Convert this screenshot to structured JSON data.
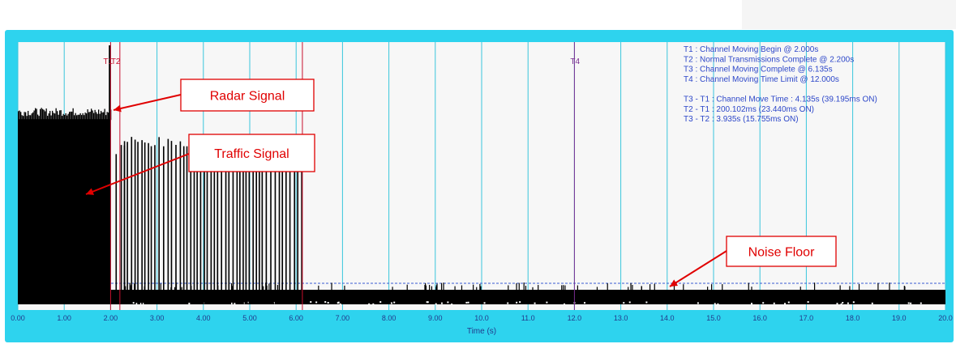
{
  "chart_data": {
    "type": "line",
    "title": "",
    "xlabel": "Time (s)",
    "ylabel": "",
    "xlim": [
      0,
      20
    ],
    "x_ticks": [
      "0.00",
      "1.00",
      "2.00",
      "3.00",
      "4.00",
      "5.00",
      "6.00",
      "7.00",
      "8.00",
      "9.00",
      "10.0",
      "11.0",
      "12.0",
      "13.0",
      "14.0",
      "15.0",
      "16.0",
      "17.0",
      "18.0",
      "19.0",
      "20.0"
    ],
    "grid": "vertical",
    "markers": [
      {
        "id": "T1",
        "time": 2.0,
        "label": "T1",
        "color": "#c8102e"
      },
      {
        "id": "T2",
        "time": 2.2,
        "label": "T2",
        "color": "#c8102e"
      },
      {
        "id": "T3",
        "time": 6.135,
        "label": "",
        "color": "#c8102e"
      },
      {
        "id": "T4",
        "time": 12.0,
        "label": "T4",
        "color": "#7a2c91"
      }
    ],
    "info_lines": [
      "T1 : Channel Moving Begin @ 2.000s",
      "T2 : Normal Transmissions Complete @ 2.200s",
      "T3 : Channel Moving Complete @ 6.135s",
      "T4 : Channel Moving Time Limit @ 12.000s",
      "",
      "T3 - T1 : Channel Move Time : 4.135s (39.195ms ON)",
      "T2 - T1 : 200.102ms (23.440ms ON)",
      "T3 - T2 : 3.935s (15.755ms ON)"
    ],
    "segments": [
      {
        "name": "traffic-dense",
        "start": 0.0,
        "end": 2.0,
        "level": 0.74
      },
      {
        "name": "radar-burst",
        "time": 2.0,
        "level": 1.0
      },
      {
        "name": "traffic-bursts",
        "start": 2.2,
        "end": 6.135,
        "level": 0.66
      },
      {
        "name": "noise-floor",
        "start": 0.0,
        "end": 20.0,
        "level": 0.1
      }
    ],
    "callouts": [
      {
        "id": "radar",
        "text": "Radar Signal"
      },
      {
        "id": "traffic",
        "text": "Traffic Signal"
      },
      {
        "id": "noise",
        "text": "Noise Floor"
      }
    ],
    "colors": {
      "frame": "#2ed3ee",
      "plot_background": "#f7f7f7",
      "gridline": "#39c6dc",
      "signal": "#000000",
      "noise_threshold": "#3a5bd0",
      "callout": "#e00000"
    }
  }
}
